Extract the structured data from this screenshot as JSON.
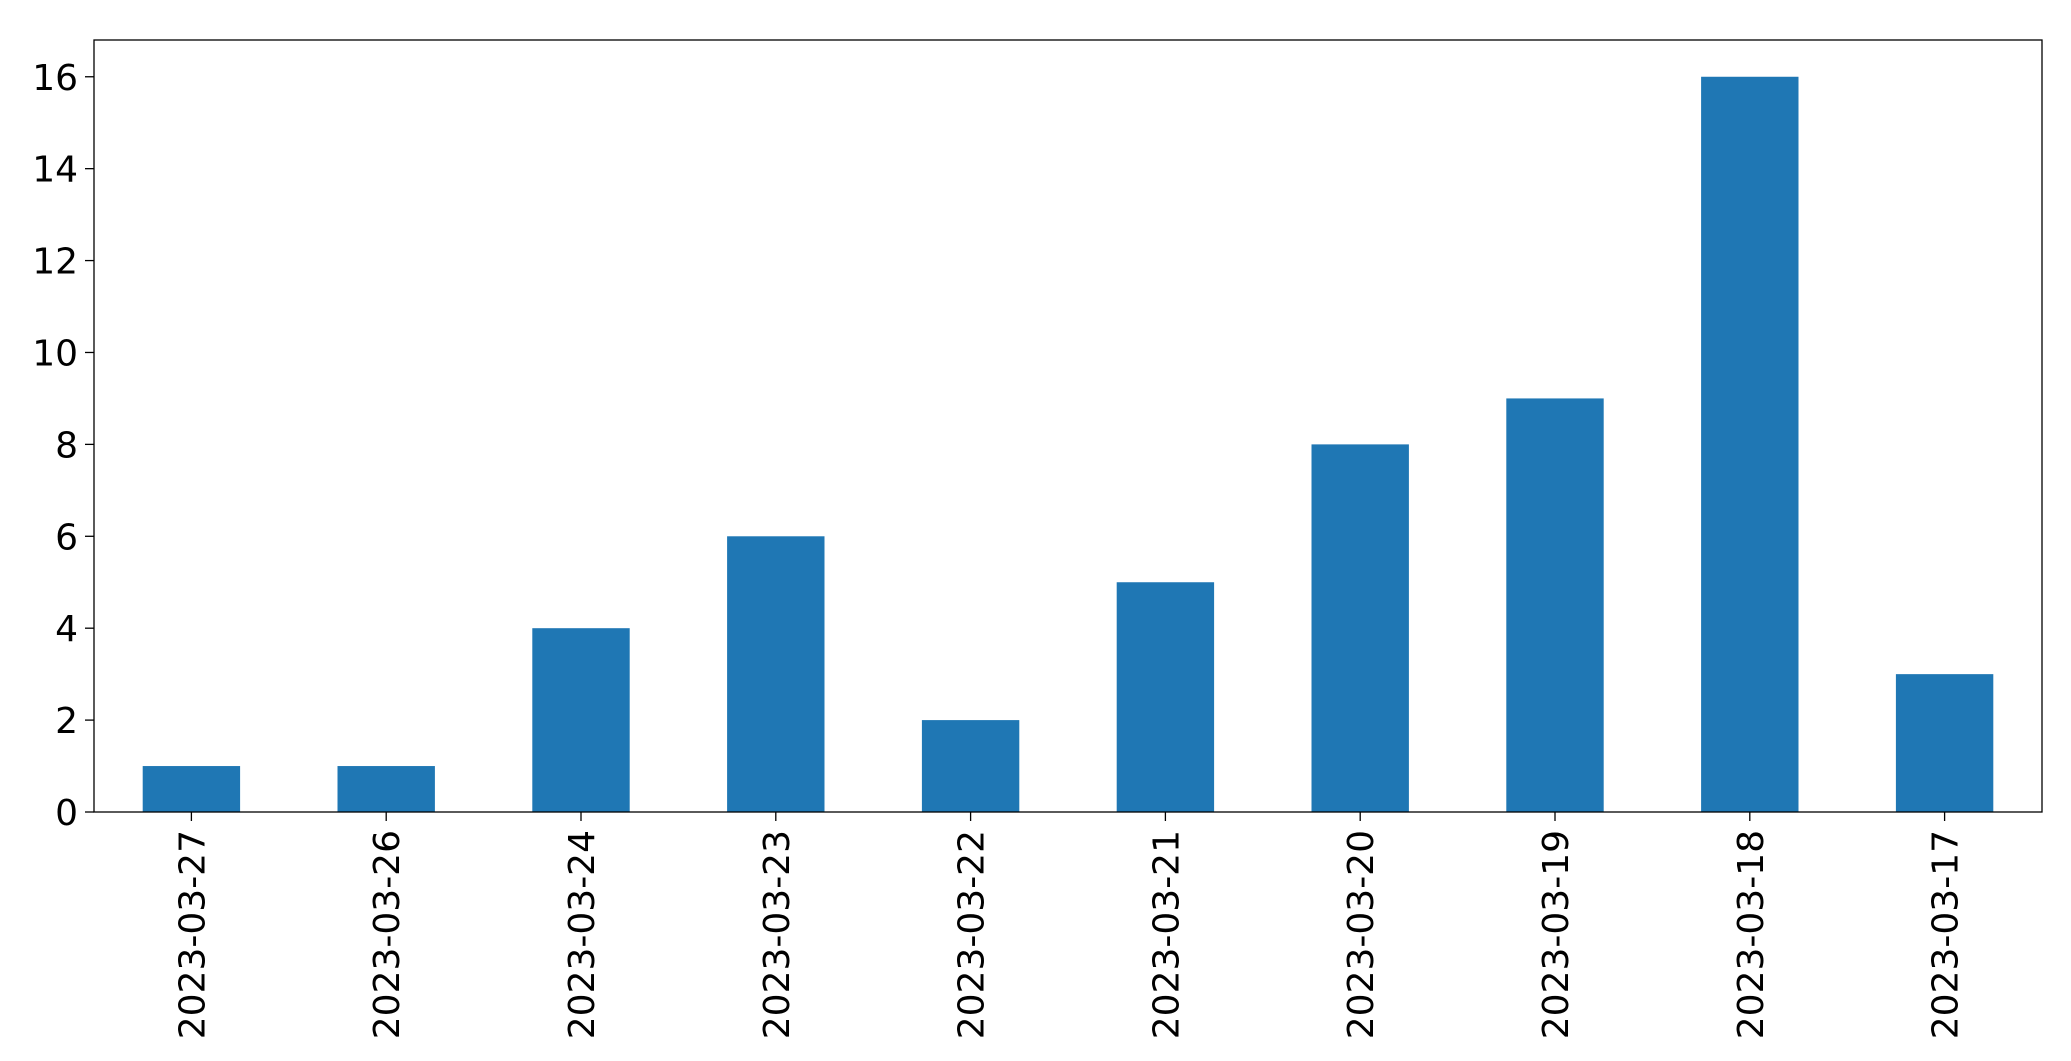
{
  "chart_data": {
    "type": "bar",
    "categories": [
      "2023-03-27",
      "2023-03-26",
      "2023-03-24",
      "2023-03-23",
      "2023-03-22",
      "2023-03-21",
      "2023-03-20",
      "2023-03-19",
      "2023-03-18",
      "2023-03-17"
    ],
    "values": [
      1,
      1,
      4,
      6,
      2,
      5,
      8,
      9,
      16,
      3
    ],
    "color": "#1f77b4",
    "ylim": [
      0,
      16.8
    ],
    "yticks": [
      0,
      2,
      4,
      6,
      8,
      10,
      12,
      14,
      16
    ],
    "grid": false
  }
}
